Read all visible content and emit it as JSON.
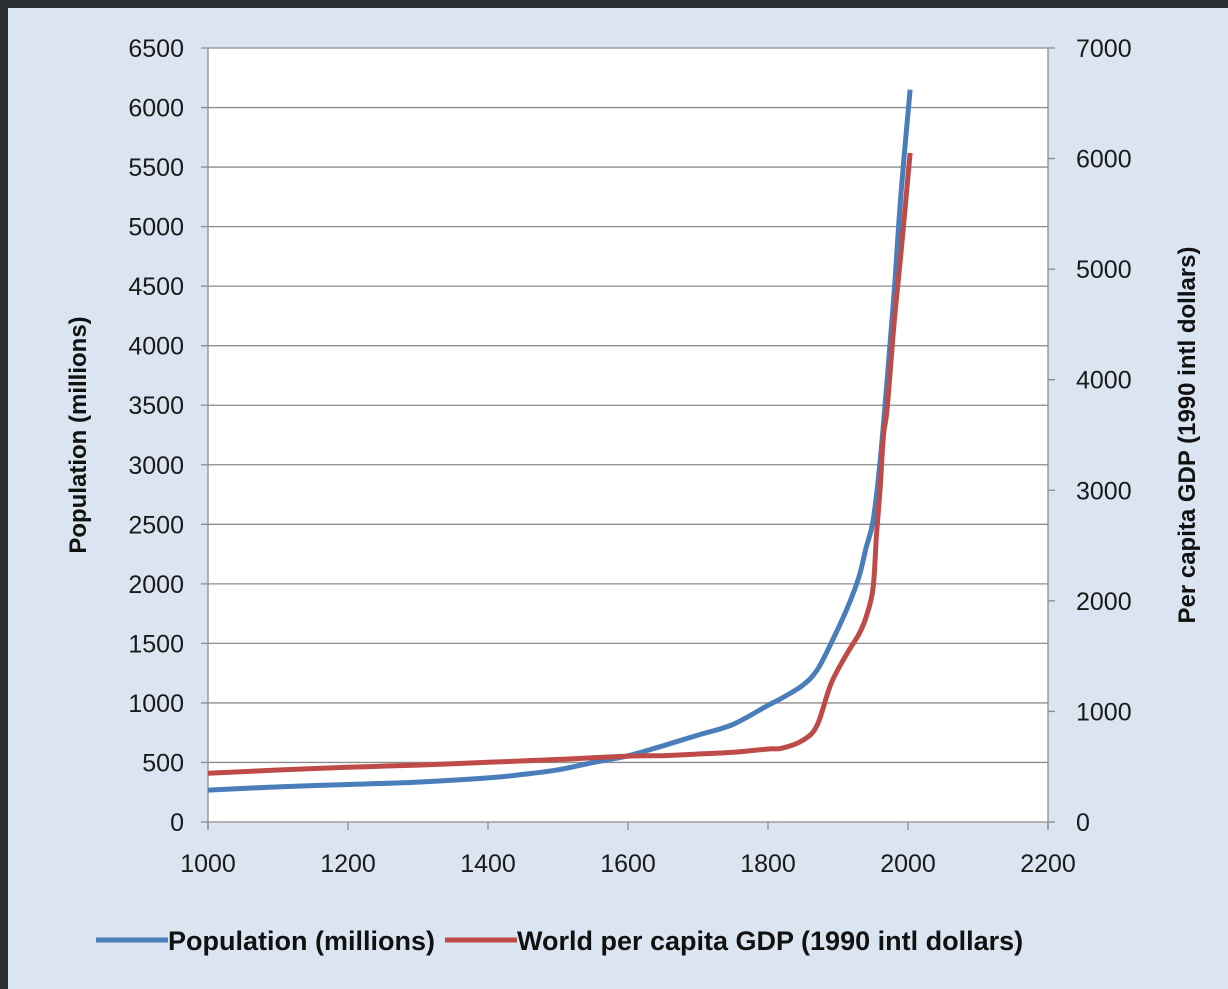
{
  "chart_data": {
    "type": "line",
    "title": "",
    "xlabel": "",
    "ylabel": "Population (millions)",
    "y2label": "Per capita GDP (1990 intl dollars)",
    "xlim": [
      1000,
      2200
    ],
    "ylim": [
      0,
      6500
    ],
    "y2lim": [
      0,
      7000
    ],
    "x_ticks": [
      "1000",
      "1200",
      "1400",
      "1600",
      "1800",
      "2000",
      "2200"
    ],
    "y_ticks": [
      "0",
      "500",
      "1000",
      "1500",
      "2000",
      "2500",
      "3000",
      "3500",
      "4000",
      "4500",
      "5000",
      "5500",
      "6000",
      "6500"
    ],
    "y2_ticks": [
      "0",
      "1000",
      "2000",
      "3000",
      "4000",
      "5000",
      "6000",
      "7000"
    ],
    "grid": "horizontal",
    "legend": "bottom",
    "series": [
      {
        "name": "Population (millions)",
        "axis": "left",
        "color": "#4a7ebb",
        "points": [
          [
            1000,
            268
          ],
          [
            1100,
            295
          ],
          [
            1200,
            315
          ],
          [
            1300,
            335
          ],
          [
            1400,
            370
          ],
          [
            1450,
            400
          ],
          [
            1500,
            438
          ],
          [
            1550,
            500
          ],
          [
            1600,
            556
          ],
          [
            1650,
            640
          ],
          [
            1700,
            730
          ],
          [
            1750,
            820
          ],
          [
            1800,
            980
          ],
          [
            1820,
            1041
          ],
          [
            1850,
            1150
          ],
          [
            1870,
            1275
          ],
          [
            1890,
            1500
          ],
          [
            1913,
            1793
          ],
          [
            1930,
            2060
          ],
          [
            1940,
            2300
          ],
          [
            1950,
            2525
          ],
          [
            1960,
            3020
          ],
          [
            1970,
            3700
          ],
          [
            1980,
            4430
          ],
          [
            1990,
            5280
          ],
          [
            2003,
            6150
          ]
        ]
      },
      {
        "name": "World per capita GDP (1990 intl dollars)",
        "axis": "right",
        "color": "#be4b48",
        "points": [
          [
            1000,
            440
          ],
          [
            1100,
            470
          ],
          [
            1200,
            495
          ],
          [
            1300,
            515
          ],
          [
            1400,
            540
          ],
          [
            1500,
            566
          ],
          [
            1600,
            596
          ],
          [
            1650,
            600
          ],
          [
            1700,
            615
          ],
          [
            1750,
            630
          ],
          [
            1800,
            660
          ],
          [
            1820,
            667
          ],
          [
            1850,
            740
          ],
          [
            1870,
            873
          ],
          [
            1890,
            1250
          ],
          [
            1913,
            1525
          ],
          [
            1930,
            1700
          ],
          [
            1940,
            1850
          ],
          [
            1950,
            2111
          ],
          [
            1955,
            2600
          ],
          [
            1960,
            3000
          ],
          [
            1965,
            3500
          ],
          [
            1970,
            3729
          ],
          [
            1980,
            4500
          ],
          [
            1990,
            5150
          ],
          [
            2003,
            6050
          ]
        ]
      }
    ]
  }
}
